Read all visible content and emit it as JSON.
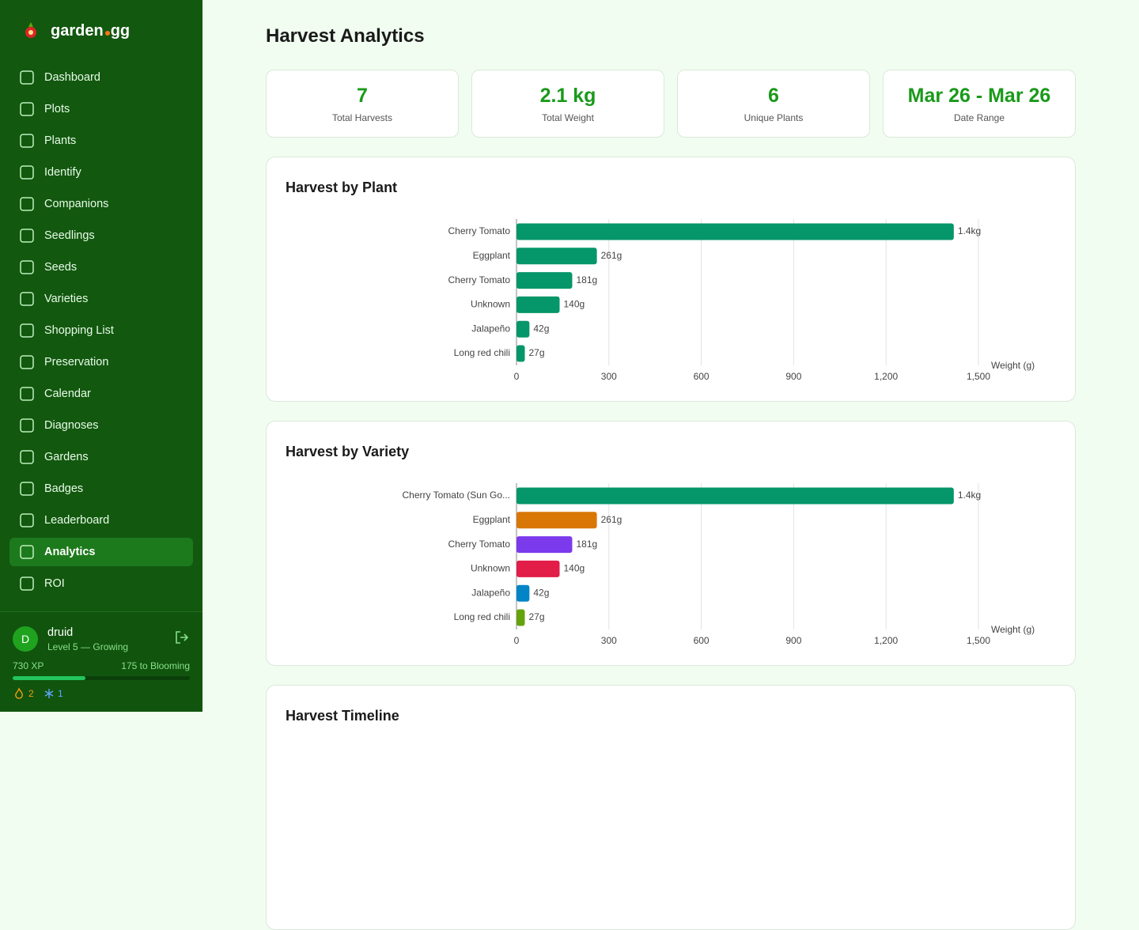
{
  "sidebar": {
    "brand": {
      "left": "garden",
      "right": "gg"
    },
    "nav": [
      "Dashboard",
      "Plots",
      "Plants",
      "Identify",
      "Companions",
      "Seedlings",
      "Seeds",
      "Varieties",
      "Shopping List",
      "Preservation",
      "Calendar",
      "Diagnoses",
      "Gardens",
      "Badges",
      "Leaderboard",
      "Analytics",
      "ROI"
    ],
    "active": "Analytics",
    "user": {
      "avatar": "D",
      "name": "druid",
      "level": "Level 5 — Growing",
      "xp": "730 XP",
      "next": "175 to Blooming",
      "xp_progress": 41,
      "streak": "2",
      "freezes": "1"
    }
  },
  "main": {
    "title": "Harvest Analytics",
    "stats": [
      {
        "value": "7",
        "label": "Total Harvests"
      },
      {
        "value": "2.1 kg",
        "label": "Total Weight"
      },
      {
        "value": "6",
        "label": "Unique Plants"
      },
      {
        "value": "Mar 26 - Mar 26",
        "label": "Date Range"
      }
    ],
    "next_card_title": "Harvest Timeline"
  },
  "chart_data": [
    {
      "type": "hbar",
      "title": "Harvest by Plant",
      "categories": [
        "Cherry Tomato",
        "Eggplant",
        "Cherry Tomato",
        "Unknown",
        "Jalapeño",
        "Long red chili"
      ],
      "values": [
        1420,
        261,
        181,
        140,
        42,
        27
      ],
      "value_labels": [
        "1.4kg",
        "261g",
        "181g",
        "140g",
        "42g",
        "27g"
      ],
      "colors": [
        "#059669",
        "#059669",
        "#059669",
        "#059669",
        "#059669",
        "#059669"
      ],
      "xlabel": "Weight (g)",
      "xlim": [
        0,
        1500
      ],
      "xticks": [
        0,
        300,
        600,
        900,
        {
          "value": 1200,
          "label": "1,200"
        },
        {
          "value": 1500,
          "label": "1,500"
        }
      ],
      "grid": true
    },
    {
      "type": "hbar",
      "title": "Harvest by Variety",
      "categories": [
        "Cherry Tomato (Sun Go...",
        "Eggplant",
        "Cherry Tomato",
        "Unknown",
        "Jalapeño",
        "Long red chili"
      ],
      "values": [
        1420,
        261,
        181,
        140,
        42,
        27
      ],
      "value_labels": [
        "1.4kg",
        "261g",
        "181g",
        "140g",
        "42g",
        "27g"
      ],
      "colors": [
        "#059669",
        "#d97706",
        "#7c3aed",
        "#e11d48",
        "#0284c7",
        "#65a30d"
      ],
      "xlabel": "Weight (g)",
      "xlim": [
        0,
        1500
      ],
      "xticks": [
        0,
        300,
        600,
        900,
        {
          "value": 1200,
          "label": "1,200"
        },
        {
          "value": 1500,
          "label": "1,500"
        }
      ],
      "grid": true
    }
  ]
}
